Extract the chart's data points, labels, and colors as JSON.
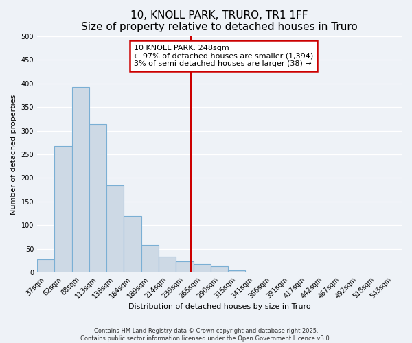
{
  "title": "10, KNOLL PARK, TRURO, TR1 1FF",
  "subtitle": "Size of property relative to detached houses in Truro",
  "xlabel": "Distribution of detached houses by size in Truro",
  "ylabel": "Number of detached properties",
  "bar_labels": [
    "37sqm",
    "62sqm",
    "88sqm",
    "113sqm",
    "138sqm",
    "164sqm",
    "189sqm",
    "214sqm",
    "239sqm",
    "265sqm",
    "290sqm",
    "315sqm",
    "341sqm",
    "366sqm",
    "391sqm",
    "417sqm",
    "442sqm",
    "467sqm",
    "492sqm",
    "518sqm",
    "543sqm"
  ],
  "bar_values": [
    28,
    267,
    392,
    314,
    184,
    119,
    59,
    33,
    24,
    17,
    13,
    5,
    0,
    0,
    0,
    0,
    0,
    0,
    0,
    0,
    0
  ],
  "bar_color": "#cdd9e5",
  "bar_edgecolor": "#7aafd4",
  "ylim": [
    0,
    500
  ],
  "yticks": [
    0,
    50,
    100,
    150,
    200,
    250,
    300,
    350,
    400,
    450,
    500
  ],
  "vline_x": 8.36,
  "vline_color": "#cc0000",
  "annotation_title": "10 KNOLL PARK: 248sqm",
  "annotation_line1": "← 97% of detached houses are smaller (1,394)",
  "annotation_line2": "3% of semi-detached houses are larger (38) →",
  "annotation_box_color": "#cc0000",
  "footer1": "Contains HM Land Registry data © Crown copyright and database right 2025.",
  "footer2": "Contains public sector information licensed under the Open Government Licence v3.0.",
  "background_color": "#eef2f7",
  "plot_background": "#eef2f7",
  "grid_color": "#ffffff",
  "title_fontsize": 11,
  "subtitle_fontsize": 9,
  "axis_label_fontsize": 8,
  "tick_fontsize": 7,
  "annotation_fontsize": 8,
  "footer_fontsize": 6
}
